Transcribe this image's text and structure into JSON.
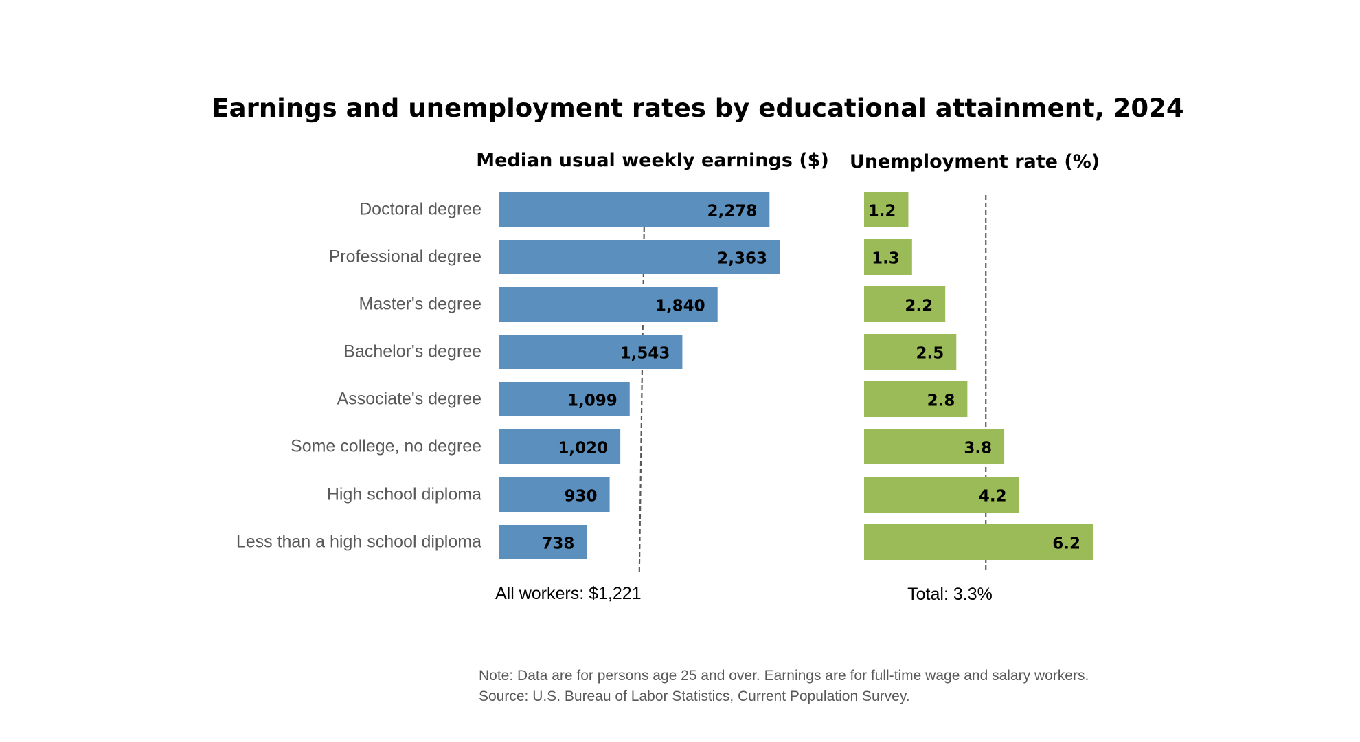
{
  "chart_data": {
    "type": "bar",
    "title": "Earnings and unemployment rates by educational attainment, 2024",
    "categories": [
      "Doctoral degree",
      "Professional degree",
      "Master's degree",
      "Bachelor's degree",
      "Associate's degree",
      "Some college, no degree",
      "High school diploma",
      "Less than a high school diploma"
    ],
    "panels": [
      {
        "title": "Median usual weekly earnings ($)",
        "values": [
          2278,
          2363,
          1840,
          1543,
          1099,
          1020,
          930,
          738
        ],
        "value_labels": [
          "2,278",
          "2,363",
          "1,840",
          "1,543",
          "1,099",
          "1,020",
          "930",
          "738"
        ],
        "color": "#5b8fbe",
        "reference_value": 1221,
        "reference_label": "All workers: $1,221",
        "xlim": [
          0,
          2400
        ]
      },
      {
        "title": "Unemployment rate (%)",
        "values": [
          1.2,
          1.3,
          2.2,
          2.5,
          2.8,
          3.8,
          4.2,
          6.2
        ],
        "value_labels": [
          "1.2",
          "1.3",
          "2.2",
          "2.5",
          "2.8",
          "3.8",
          "4.2",
          "6.2"
        ],
        "color": "#9bbb59",
        "reference_value": 3.3,
        "reference_label": "Total: 3.3%",
        "xlim": [
          0,
          6.3
        ]
      }
    ],
    "notes": [
      "Note: Data are for persons age 25 and over. Earnings are for full-time wage and salary workers.",
      "Source: U.S. Bureau of Labor Statistics, Current Population Survey."
    ],
    "grid": false,
    "legend": "none"
  }
}
